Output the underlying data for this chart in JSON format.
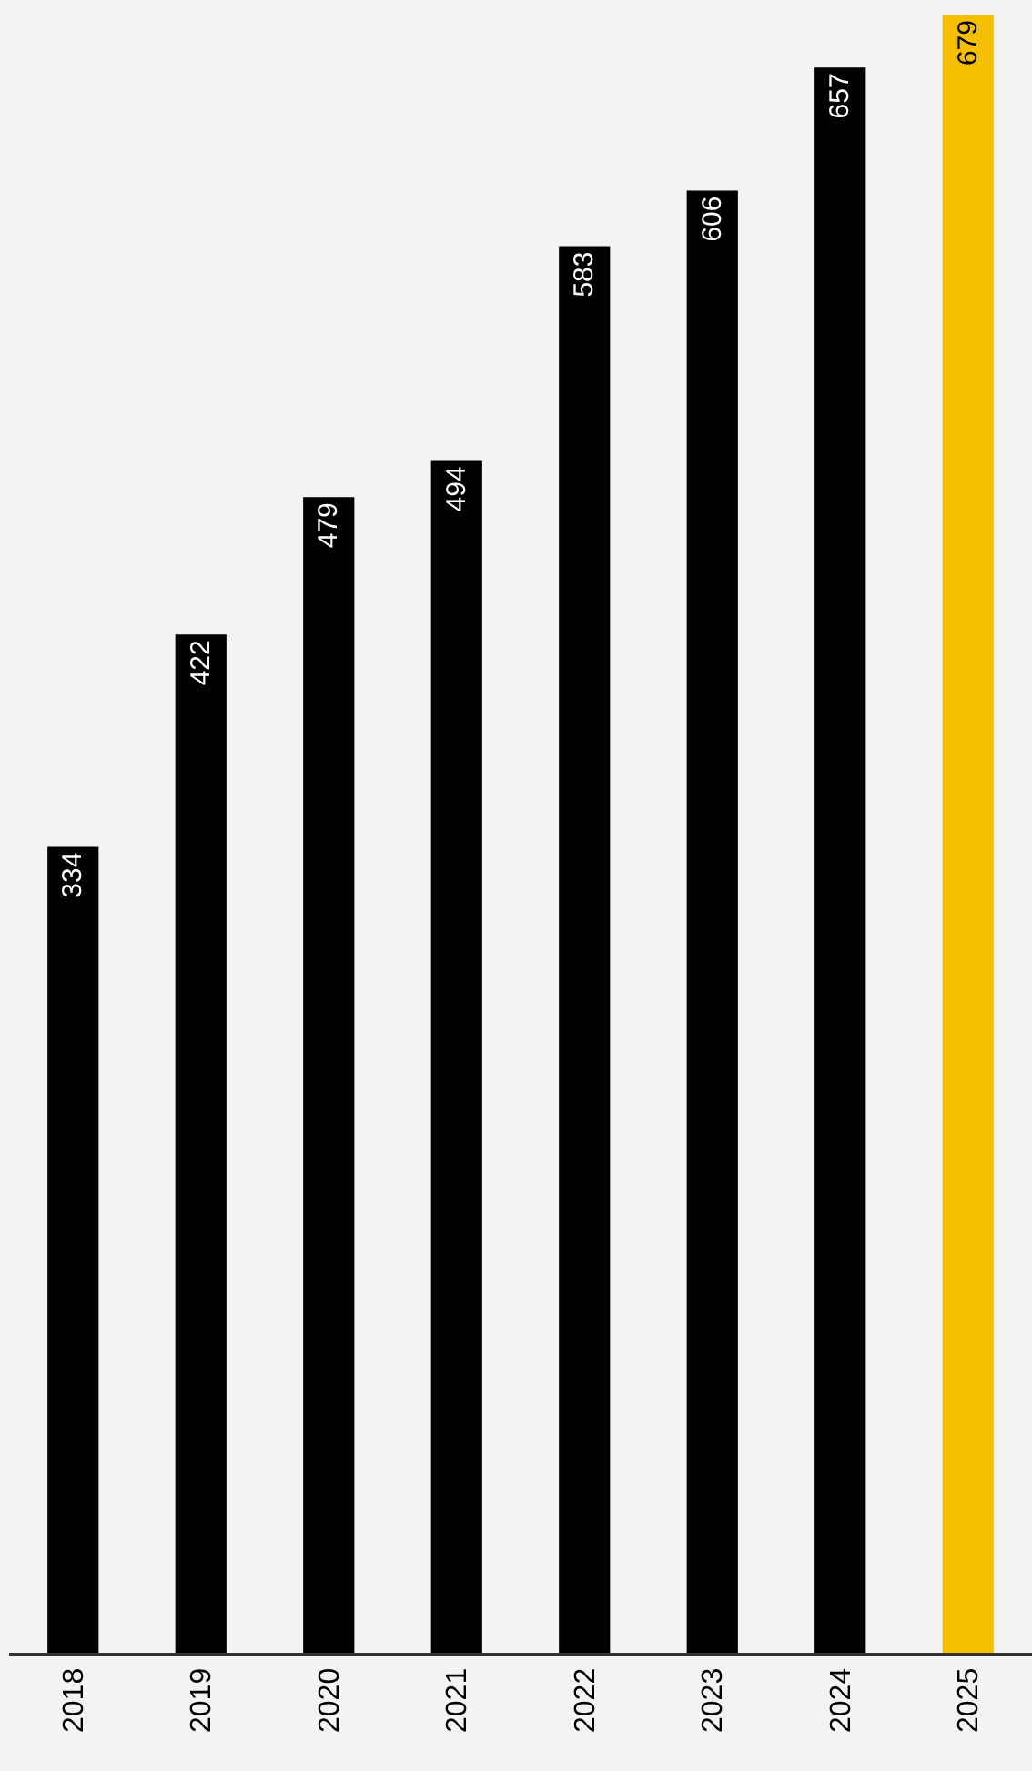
{
  "chart_data": {
    "type": "bar",
    "categories": [
      "2018",
      "2019",
      "2020",
      "2021",
      "2022",
      "2023",
      "2024",
      "2025"
    ],
    "values": [
      334,
      422,
      479,
      494,
      583,
      606,
      657,
      679
    ],
    "colors": [
      "#000000",
      "#000000",
      "#000000",
      "#000000",
      "#000000",
      "#000000",
      "#000000",
      "#f5be00"
    ],
    "data_labels": true,
    "grid": false,
    "legend": false
  }
}
